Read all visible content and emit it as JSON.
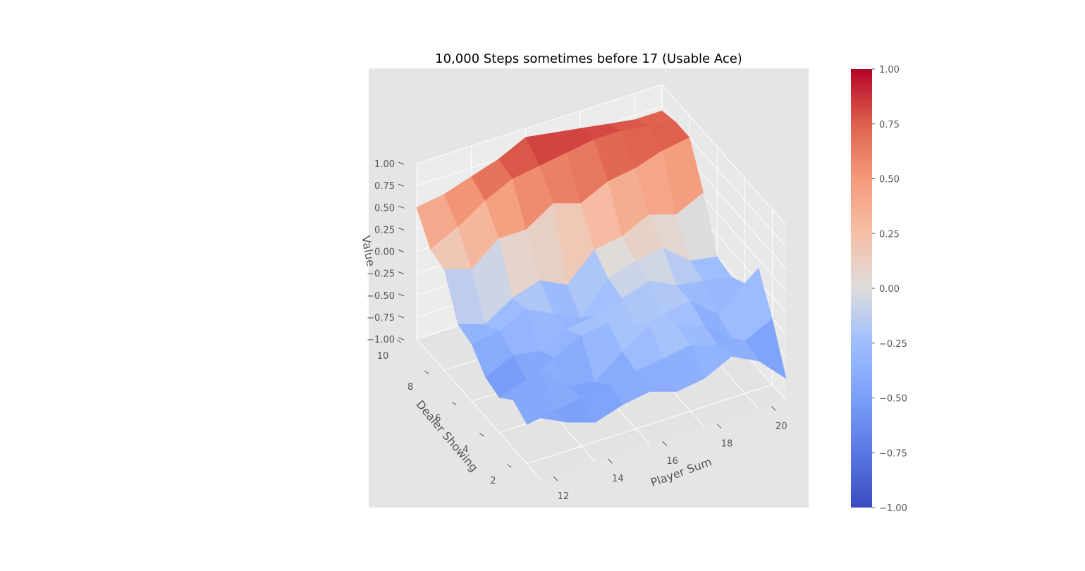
{
  "chart_data": {
    "type": "surface3d",
    "title": "10,000 Steps sometimes before 17 (Usable Ace)",
    "xlabel": "Player Sum",
    "ylabel": "Dealer Showing",
    "zlabel": "Value",
    "x": [
      12,
      13,
      14,
      15,
      16,
      17,
      18,
      19,
      20,
      21
    ],
    "y": [
      1,
      2,
      3,
      4,
      5,
      6,
      7,
      8,
      9,
      10
    ],
    "x_ticks": [
      "12",
      "14",
      "16",
      "18",
      "20"
    ],
    "y_ticks": [
      "2",
      "4",
      "6",
      "8",
      "10"
    ],
    "z_ticks": [
      "−1.00",
      "−0.75",
      "−0.50",
      "−0.25",
      "0.00",
      "0.25",
      "0.50",
      "0.75",
      "1.00"
    ],
    "xlim": [
      12,
      21
    ],
    "ylim": [
      1,
      10
    ],
    "zlim": [
      -1,
      1
    ],
    "z": [
      [
        -0.3,
        -0.45,
        -0.55,
        -0.45,
        -0.4,
        -0.5,
        -0.45,
        -0.3,
        -0.45,
        -0.75
      ],
      [
        -0.55,
        -0.5,
        -0.45,
        -0.4,
        -0.35,
        -0.3,
        -0.25,
        -0.35,
        -0.4,
        -0.25
      ],
      [
        -0.45,
        -0.2,
        -0.5,
        -0.55,
        -0.3,
        -0.1,
        -0.2,
        -0.3,
        -0.55,
        0.15
      ],
      [
        -0.6,
        -0.5,
        -0.35,
        -0.2,
        -0.15,
        -0.3,
        -0.25,
        -0.2,
        -0.45,
        -0.2
      ],
      [
        -0.55,
        -0.4,
        -0.45,
        -0.3,
        -0.25,
        -0.15,
        -0.05,
        -0.2,
        -0.25,
        -0.3
      ],
      [
        -0.35,
        -0.3,
        -0.15,
        -0.3,
        -0.45,
        -0.1,
        0.0,
        0.05,
        -0.2,
        -0.25
      ],
      [
        -0.3,
        -0.4,
        -0.2,
        -0.1,
        -0.25,
        0.05,
        0.1,
        0.25,
        0.15,
        0.3
      ],
      [
        0.15,
        0.05,
        0.3,
        0.3,
        0.5,
        0.4,
        0.55,
        0.6,
        0.7,
        0.75
      ],
      [
        0.2,
        0.35,
        0.55,
        0.7,
        0.75,
        0.8,
        0.85,
        0.85,
        0.8,
        0.75
      ],
      [
        0.5,
        0.55,
        0.65,
        0.75,
        0.9,
        0.85,
        0.8,
        0.75,
        0.7,
        0.7
      ]
    ],
    "colormap": "coolwarm",
    "colorbar": {
      "ticks": [
        "1.00",
        "0.75",
        "0.50",
        "0.25",
        "0.00",
        "−0.25",
        "−0.50",
        "−0.75",
        "−1.00"
      ],
      "range": [
        -1,
        1
      ]
    },
    "grid": true,
    "style": "ggplot",
    "colors": {
      "axes_bg": "#e5e5e5",
      "grid": "#ffffff",
      "pane": "#ebebeb",
      "text": "#555555",
      "title": "#000000",
      "low": "#3b4cc0",
      "mid": "#dddddd",
      "high": "#b40426"
    }
  }
}
